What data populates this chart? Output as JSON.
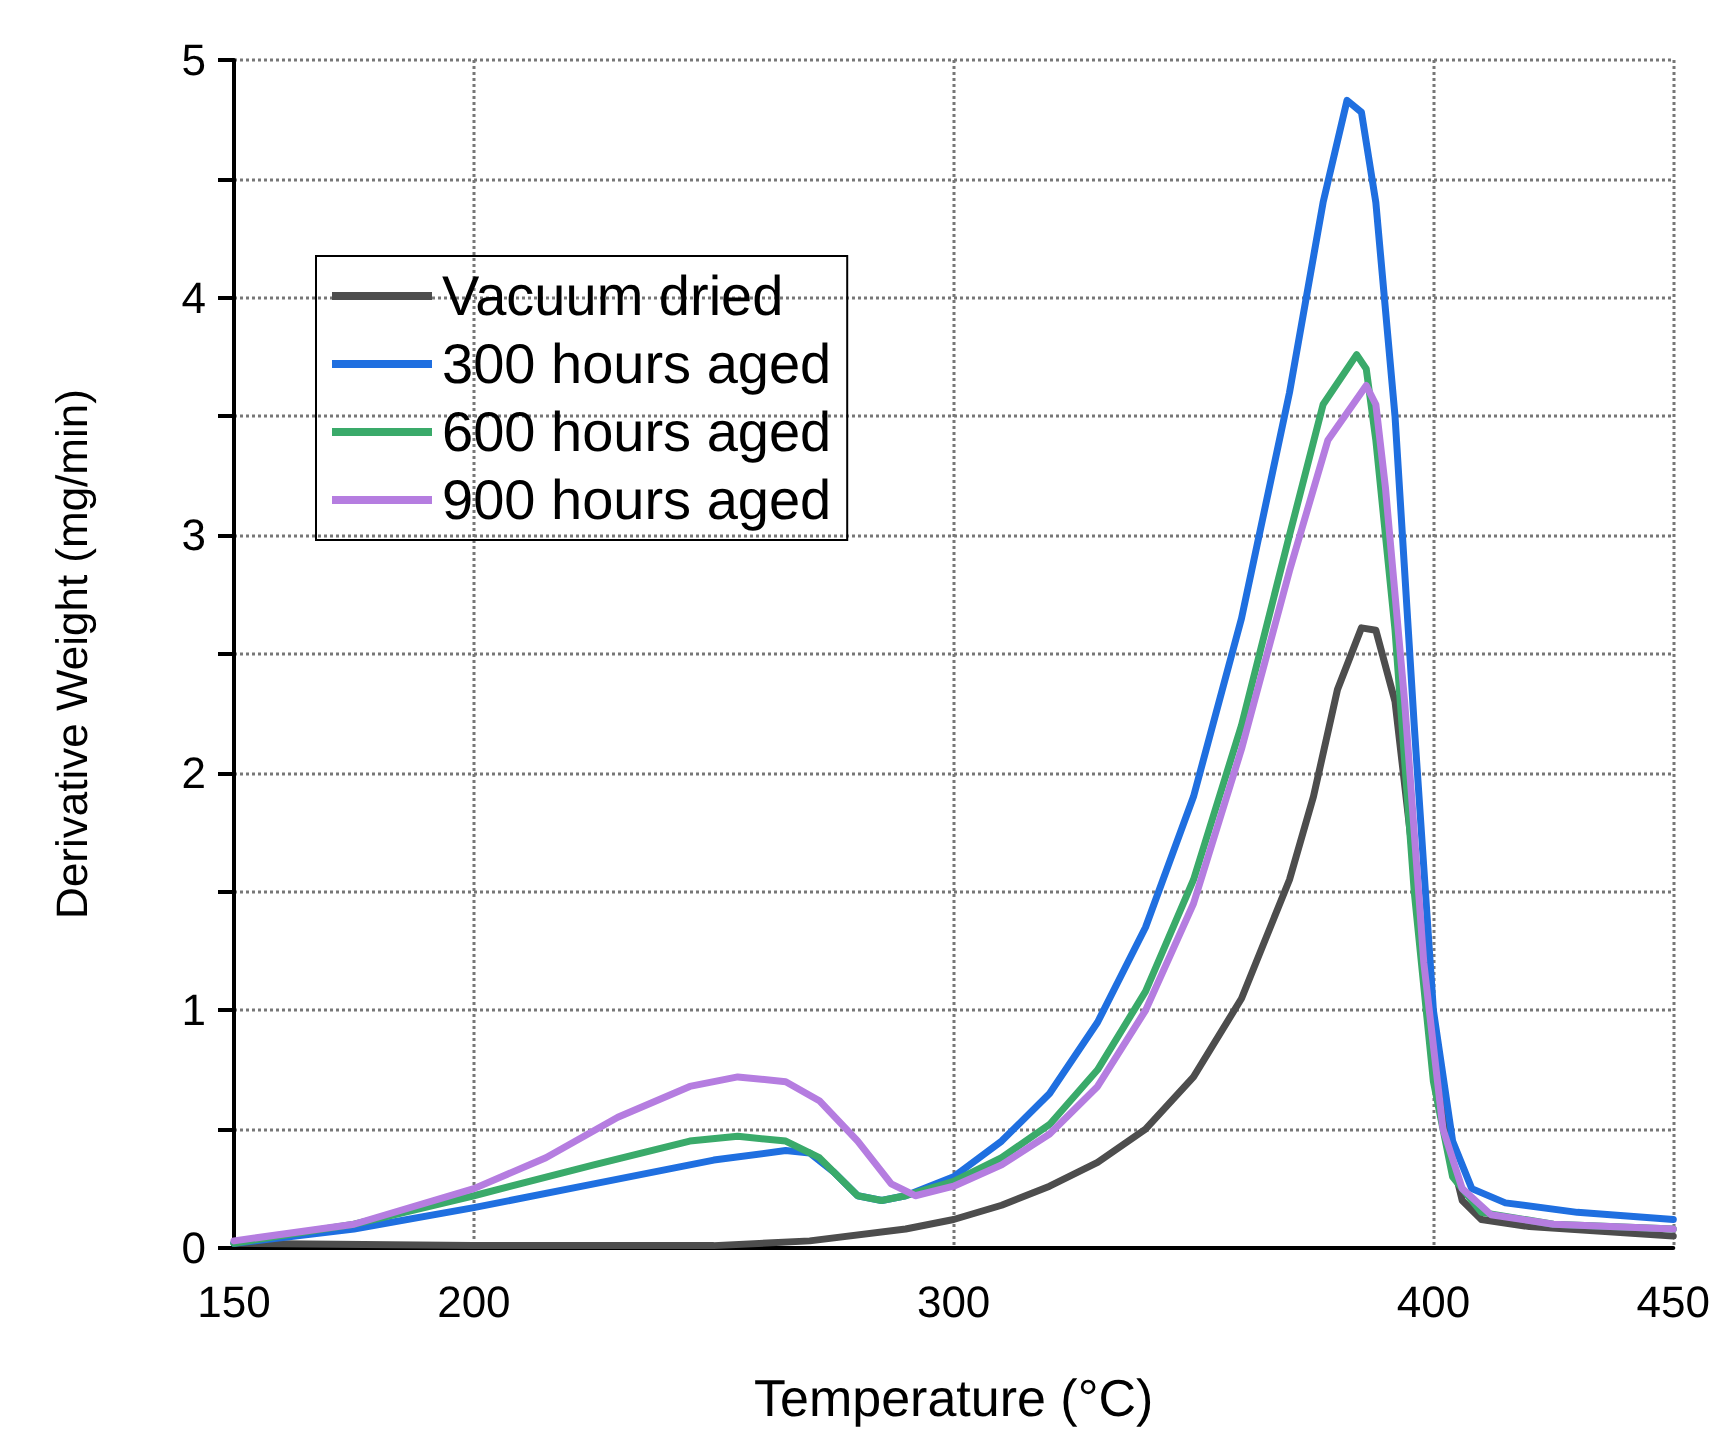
{
  "chart_data": {
    "type": "line",
    "xlabel": "Temperature (°C)",
    "ylabel": "Derivative Weight (mg/min)",
    "xlim": [
      150,
      450
    ],
    "xticks": [
      150,
      200,
      300,
      400,
      450
    ],
    "ylim": [
      0,
      5
    ],
    "yticks": [
      0,
      {
        "value": 0.5,
        "label": null
      },
      1,
      {
        "value": 1.5,
        "label": null
      },
      2,
      {
        "value": 2.5,
        "label": null
      },
      3,
      {
        "value": 3.5,
        "label": null
      },
      4,
      {
        "value": 4.5,
        "label": null
      },
      5
    ],
    "grid": true,
    "legend": "top left",
    "marker": "none",
    "line_style": "solid",
    "series": [
      {
        "name": "Vacuum dried",
        "color": "#4d4d4d",
        "x": [
          150,
          200,
          250,
          270,
          290,
          300,
          310,
          320,
          330,
          340,
          350,
          360,
          370,
          375,
          380,
          385,
          388,
          392,
          396,
          400,
          403,
          406,
          410,
          420,
          435,
          450
        ],
        "values": [
          0.02,
          0.01,
          0.01,
          0.03,
          0.08,
          0.12,
          0.18,
          0.26,
          0.36,
          0.5,
          0.72,
          1.05,
          1.55,
          1.9,
          2.35,
          2.61,
          2.6,
          2.3,
          1.6,
          0.9,
          0.45,
          0.2,
          0.12,
          0.09,
          0.07,
          0.05
        ]
      },
      {
        "name": "300 hours aged",
        "color": "#1f6fe0",
        "x": [
          150,
          175,
          200,
          225,
          250,
          265,
          270,
          275,
          280,
          285,
          290,
          300,
          310,
          320,
          330,
          340,
          350,
          360,
          370,
          377,
          382,
          385,
          388,
          392,
          396,
          400,
          404,
          408,
          415,
          430,
          450
        ],
        "values": [
          0.02,
          0.08,
          0.17,
          0.27,
          0.37,
          0.41,
          0.4,
          0.32,
          0.22,
          0.2,
          0.22,
          0.3,
          0.45,
          0.65,
          0.95,
          1.35,
          1.9,
          2.65,
          3.6,
          4.4,
          4.83,
          4.78,
          4.4,
          3.5,
          2.2,
          1.0,
          0.45,
          0.25,
          0.19,
          0.15,
          0.12
        ]
      },
      {
        "name": "600 hours aged",
        "color": "#3aaa6a",
        "x": [
          150,
          175,
          200,
          225,
          245,
          255,
          265,
          272,
          280,
          285,
          290,
          300,
          310,
          320,
          330,
          340,
          350,
          360,
          370,
          377,
          384,
          386,
          388,
          392,
          396,
          400,
          404,
          410,
          425,
          450
        ],
        "values": [
          0.02,
          0.1,
          0.22,
          0.35,
          0.45,
          0.47,
          0.45,
          0.38,
          0.22,
          0.2,
          0.22,
          0.28,
          0.38,
          0.52,
          0.75,
          1.08,
          1.55,
          2.2,
          3.0,
          3.55,
          3.76,
          3.7,
          3.4,
          2.6,
          1.5,
          0.7,
          0.3,
          0.15,
          0.1,
          0.08
        ]
      },
      {
        "name": "900 hours aged",
        "color": "#b57de0",
        "x": [
          150,
          175,
          200,
          215,
          230,
          245,
          255,
          265,
          272,
          280,
          287,
          292,
          300,
          310,
          320,
          330,
          340,
          350,
          360,
          370,
          378,
          386,
          388,
          390,
          394,
          398,
          402,
          406,
          412,
          425,
          450
        ],
        "values": [
          0.03,
          0.1,
          0.25,
          0.38,
          0.55,
          0.68,
          0.72,
          0.7,
          0.62,
          0.45,
          0.27,
          0.22,
          0.26,
          0.35,
          0.48,
          0.68,
          1.0,
          1.45,
          2.1,
          2.85,
          3.4,
          3.63,
          3.55,
          3.2,
          2.3,
          1.2,
          0.5,
          0.25,
          0.14,
          0.1,
          0.08
        ]
      }
    ]
  }
}
